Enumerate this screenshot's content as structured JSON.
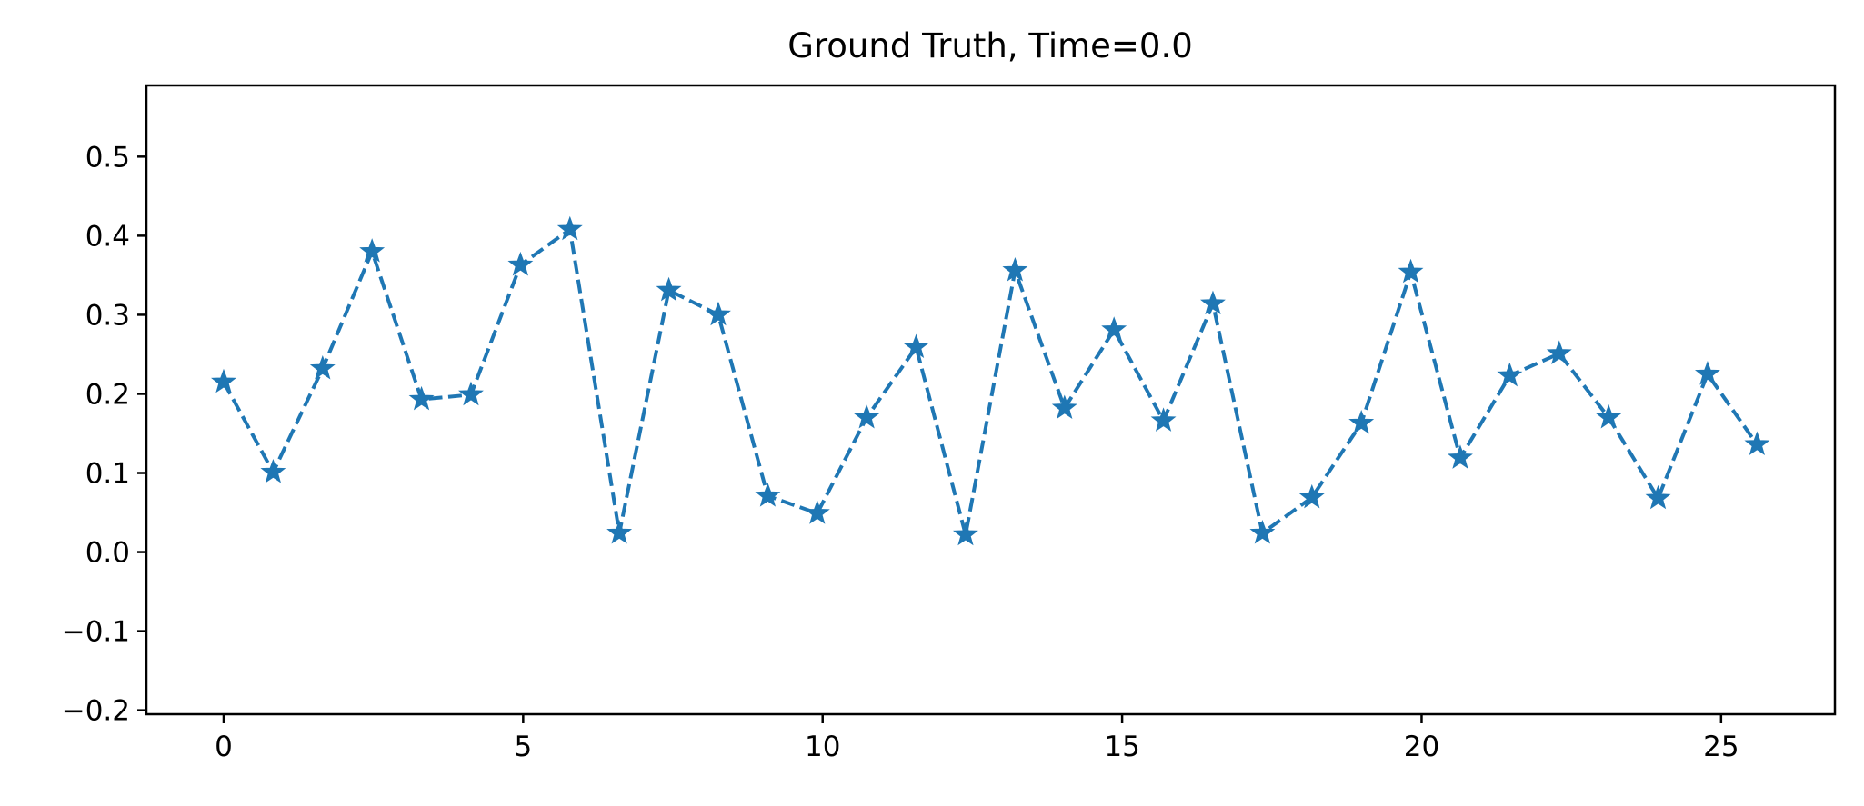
{
  "chart_data": {
    "type": "line",
    "title": "Ground Truth, Time=0.0",
    "xlabel": "",
    "ylabel": "",
    "xlim": [
      -1.29,
      26.9
    ],
    "ylim": [
      -0.205,
      0.59
    ],
    "xticks": [
      0,
      5,
      10,
      15,
      20,
      25
    ],
    "yticks": [
      -0.2,
      -0.1,
      0.0,
      0.1,
      0.2,
      0.3,
      0.4,
      0.5
    ],
    "xtick_labels": [
      "0",
      "5",
      "10",
      "15",
      "20",
      "25"
    ],
    "ytick_labels": [
      "−0.2",
      "−0.1",
      "0.0",
      "0.1",
      "0.2",
      "0.3",
      "0.4",
      "0.5"
    ],
    "grid": false,
    "series": [
      {
        "color": "#1f77b4",
        "line_style": "dashed",
        "marker": "star",
        "x": [
          0.0,
          0.826,
          1.652,
          2.477,
          3.303,
          4.129,
          4.955,
          5.781,
          6.606,
          7.432,
          8.258,
          9.084,
          9.91,
          10.735,
          11.561,
          12.387,
          13.213,
          14.039,
          14.865,
          15.69,
          16.516,
          17.342,
          18.168,
          18.994,
          19.819,
          20.645,
          21.471,
          22.297,
          23.123,
          23.948,
          24.774,
          25.6
        ],
        "y": [
          0.215,
          0.101,
          0.232,
          0.38,
          0.193,
          0.199,
          0.363,
          0.408,
          0.024,
          0.331,
          0.3,
          0.071,
          0.049,
          0.17,
          0.259,
          0.022,
          0.356,
          0.182,
          0.281,
          0.166,
          0.314,
          0.024,
          0.069,
          0.163,
          0.354,
          0.119,
          0.223,
          0.251,
          0.17,
          0.068,
          0.225,
          0.136
        ]
      }
    ]
  }
}
